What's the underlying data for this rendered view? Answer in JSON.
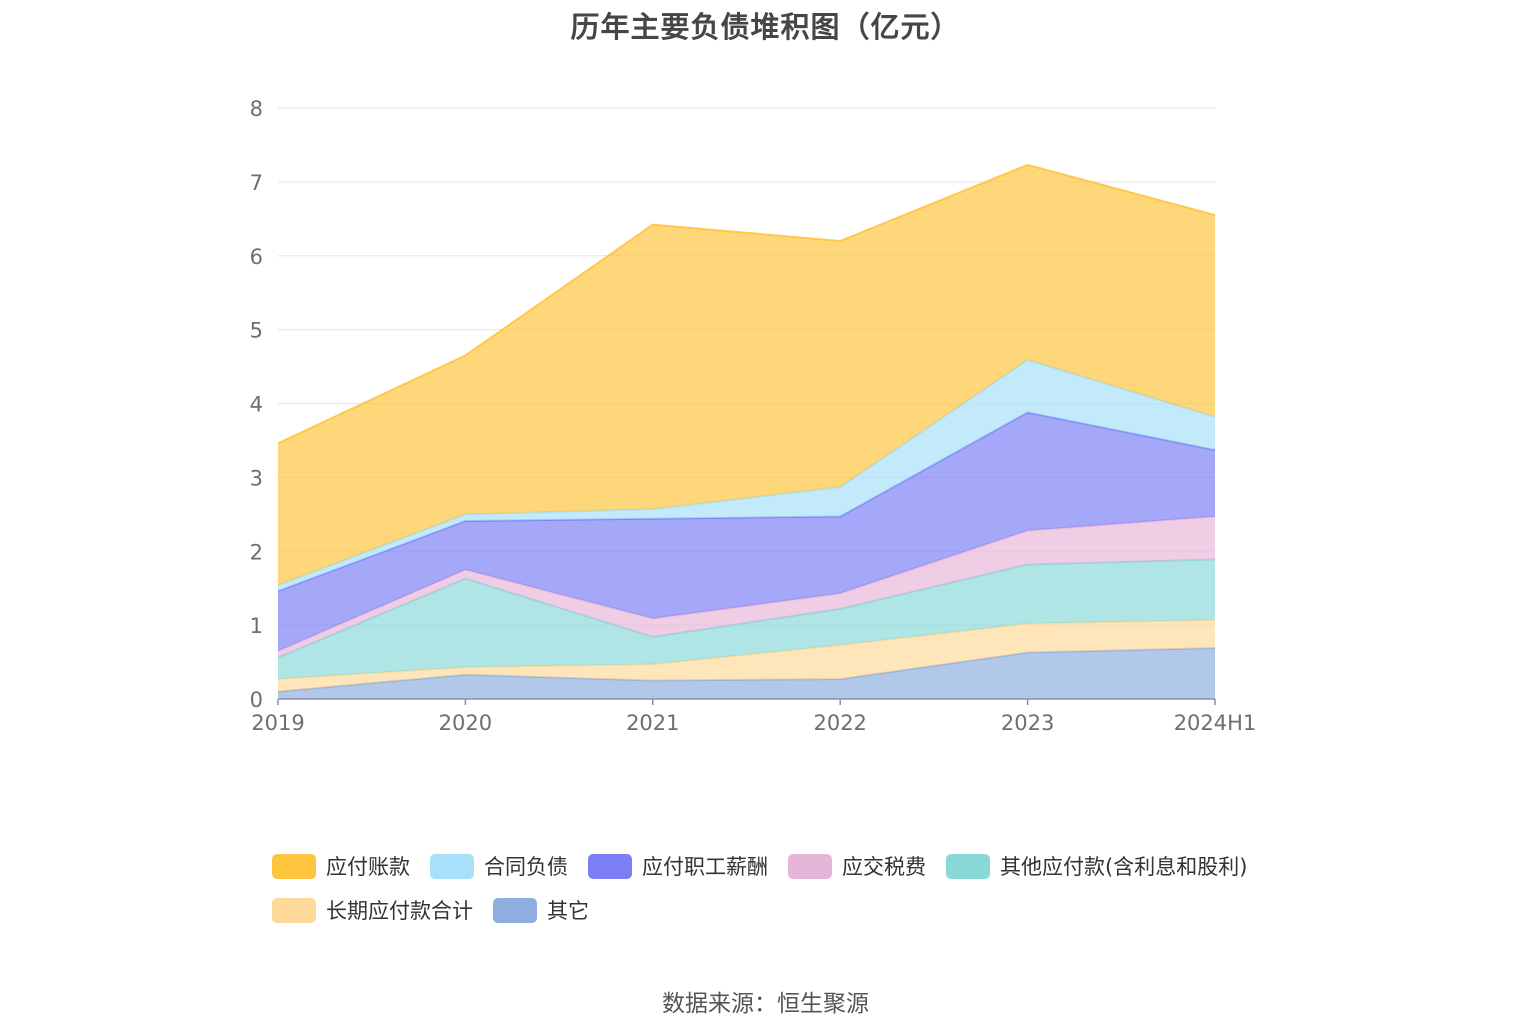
{
  "page": {
    "source": "数据来源：恒生聚源"
  },
  "chart_data": {
    "type": "area",
    "stacked": true,
    "title": "历年主要负债堆积图（亿元）",
    "categories": [
      "2019",
      "2020",
      "2021",
      "2022",
      "2023",
      "2024H1"
    ],
    "y_ticks": [
      "0",
      "1",
      "2",
      "3",
      "4",
      "5",
      "6",
      "7",
      "8"
    ],
    "ylim": [
      0,
      8
    ],
    "xlabel": "",
    "ylabel": "",
    "grid": true,
    "legend_position": "bottom",
    "series": [
      {
        "name": "其它",
        "color": "#8eaedf",
        "values": [
          0.1,
          0.33,
          0.25,
          0.27,
          0.63,
          0.69
        ]
      },
      {
        "name": "长期应付款合计",
        "color": "#ffd99a",
        "values": [
          0.17,
          0.1,
          0.22,
          0.46,
          0.39,
          0.38
        ]
      },
      {
        "name": "其他应付款(含利息和股利)",
        "color": "#89d8d8",
        "values": [
          0.29,
          1.2,
          0.37,
          0.49,
          0.8,
          0.82
        ]
      },
      {
        "name": "应交税费",
        "color": "#e6b6d8",
        "values": [
          0.09,
          0.12,
          0.25,
          0.21,
          0.46,
          0.58
        ]
      },
      {
        "name": "应付职工薪酬",
        "color": "#7b7ef5",
        "values": [
          0.81,
          0.66,
          1.35,
          1.04,
          1.6,
          0.9
        ]
      },
      {
        "name": "合同负债",
        "color": "#a7e0f8",
        "values": [
          0.08,
          0.09,
          0.13,
          0.4,
          0.71,
          0.45
        ]
      },
      {
        "name": "应付账款",
        "color": "#ffc43d",
        "values": [
          1.92,
          2.15,
          3.85,
          3.33,
          2.64,
          2.73
        ]
      }
    ],
    "legend_order": [
      "应付账款",
      "合同负债",
      "应付职工薪酬",
      "应交税费",
      "其他应付款(含利息和股利)",
      "长期应付款合计",
      "其它"
    ]
  }
}
